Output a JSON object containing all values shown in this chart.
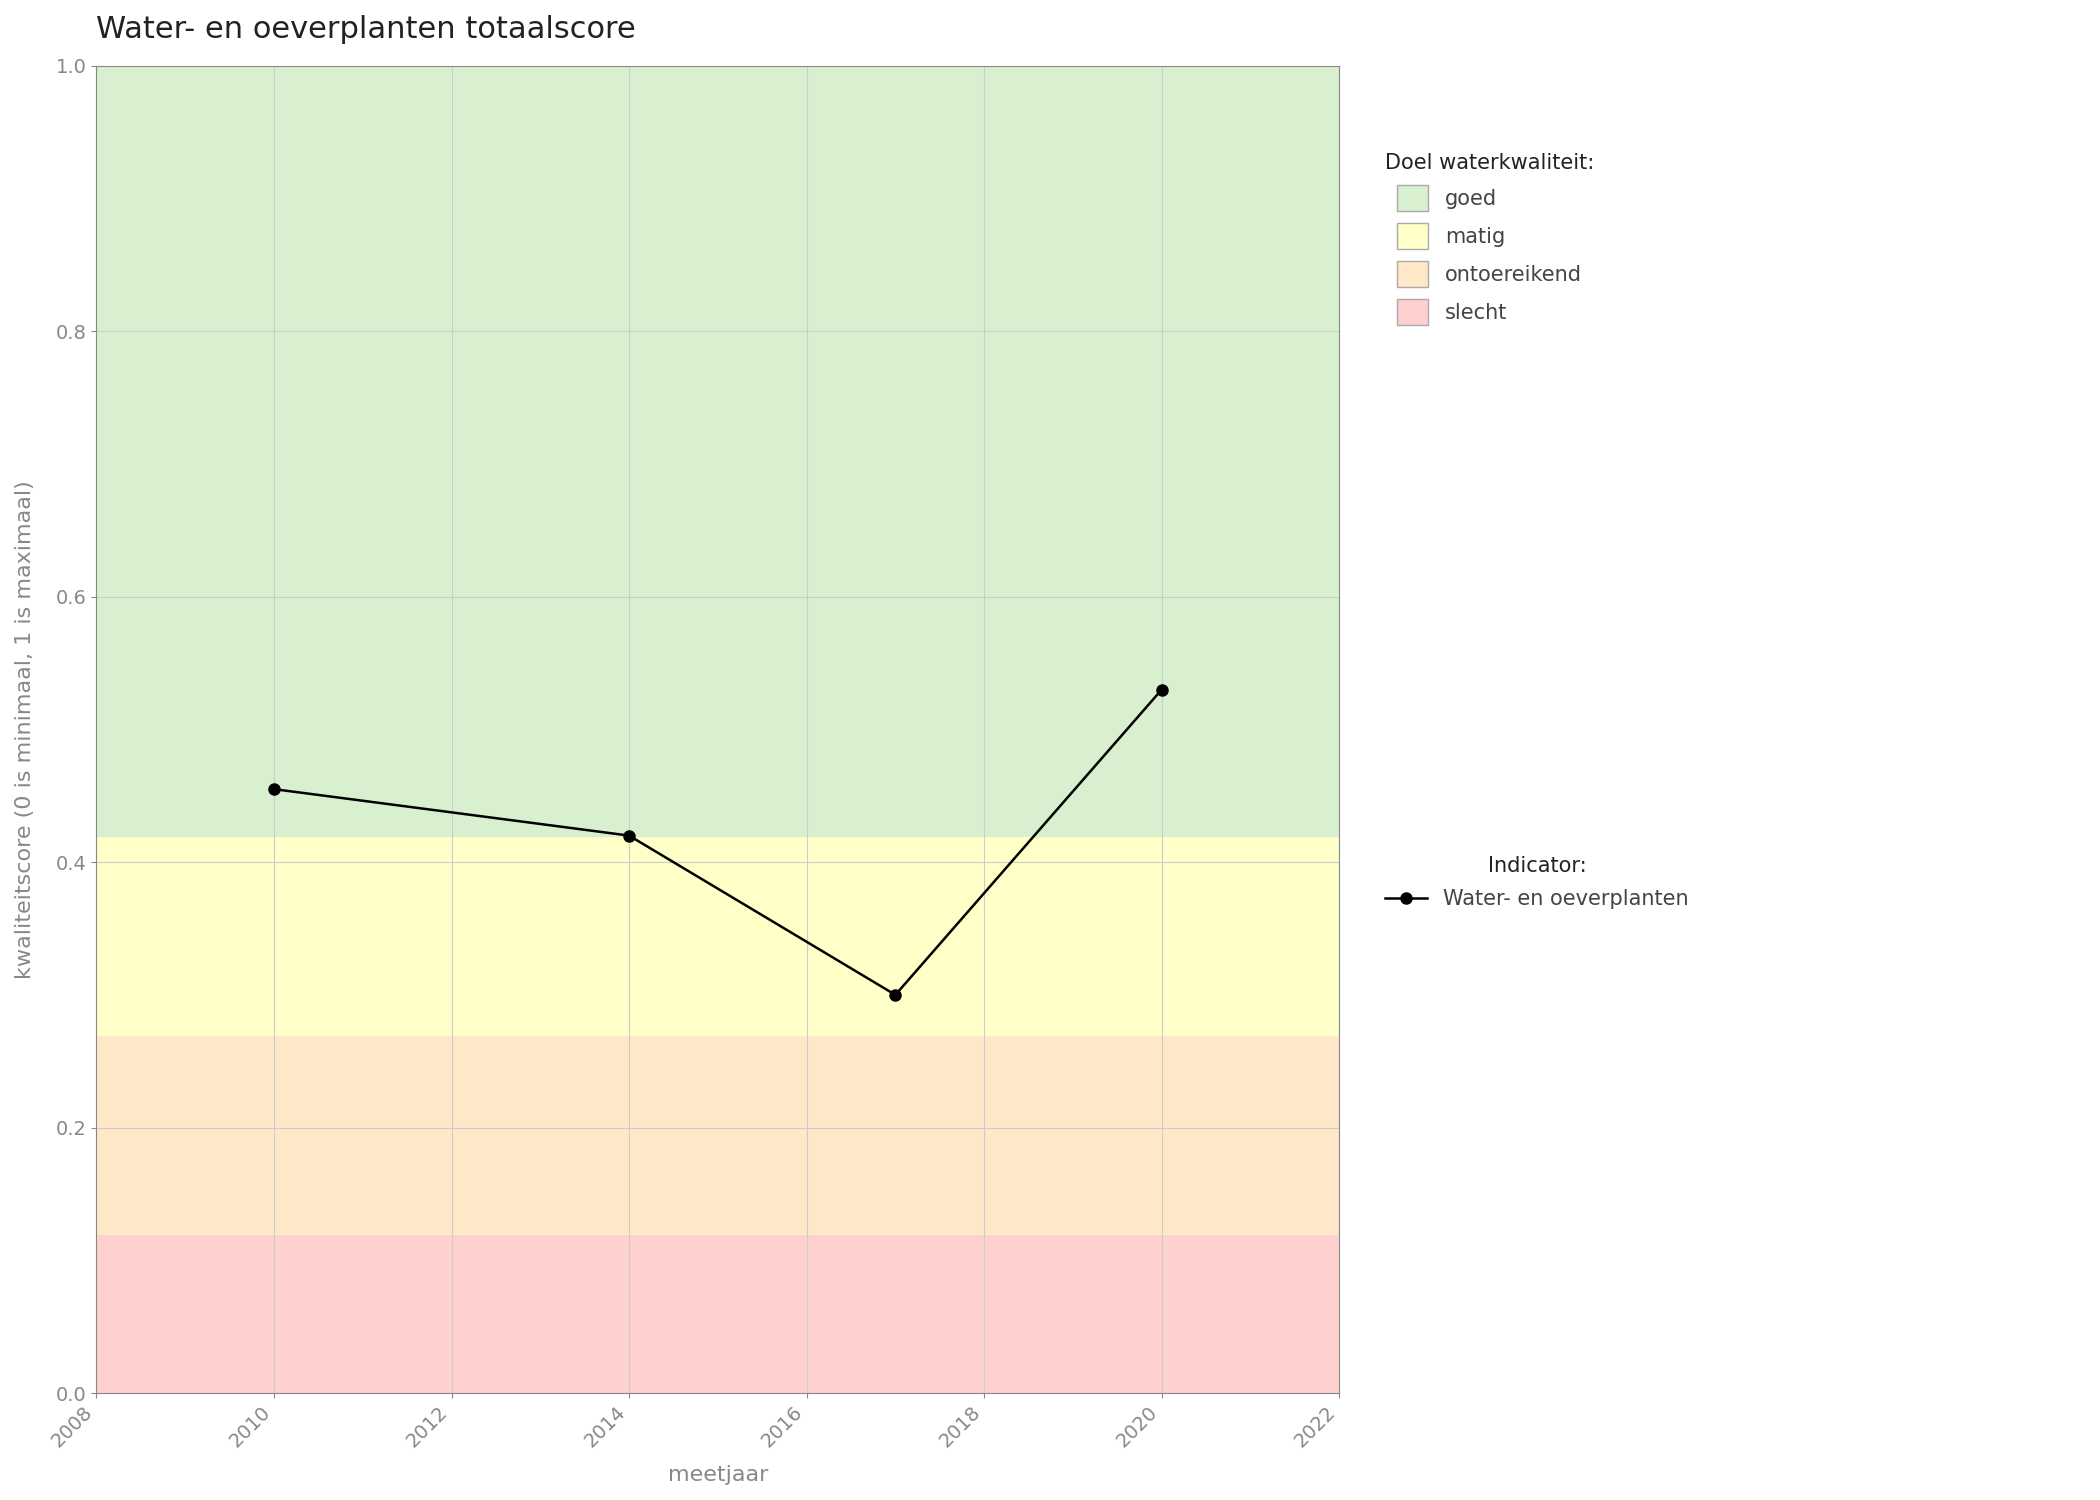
{
  "title": "Water- en oeverplanten totaalscore",
  "xlabel": "meetjaar",
  "ylabel": "kwaliteitscore (0 is minimaal, 1 is maximaal)",
  "xlim": [
    2008,
    2022
  ],
  "ylim": [
    0.0,
    1.0
  ],
  "xticks": [
    2008,
    2010,
    2012,
    2014,
    2016,
    2018,
    2020,
    2022
  ],
  "yticks": [
    0.0,
    0.2,
    0.4,
    0.6,
    0.8,
    1.0
  ],
  "years": [
    2010,
    2014,
    2017,
    2020
  ],
  "values": [
    0.455,
    0.42,
    0.3,
    0.53
  ],
  "bg_bands": [
    {
      "ymin": 0.0,
      "ymax": 0.12,
      "color": "#FFD0D0",
      "label": "slecht"
    },
    {
      "ymin": 0.12,
      "ymax": 0.27,
      "color": "#FFE8C8",
      "label": "ontoereikend"
    },
    {
      "ymin": 0.27,
      "ymax": 0.42,
      "color": "#FFFFC8",
      "label": "matig"
    },
    {
      "ymin": 0.42,
      "ymax": 1.0,
      "color": "#D8F0D0",
      "label": "goed"
    }
  ],
  "line_color": "#000000",
  "marker_color": "#000000",
  "marker_size": 8,
  "line_width": 1.8,
  "title_fontsize": 22,
  "label_fontsize": 16,
  "tick_fontsize": 14,
  "legend_fontsize": 15,
  "background_color": "#FFFFFF",
  "grid_color": "#CCCCCC",
  "legend_title_doel": "Doel waterkwaliteit:",
  "legend_title_indicator": "Indicator:",
  "legend_indicator_label": "Water- en oeverplanten"
}
